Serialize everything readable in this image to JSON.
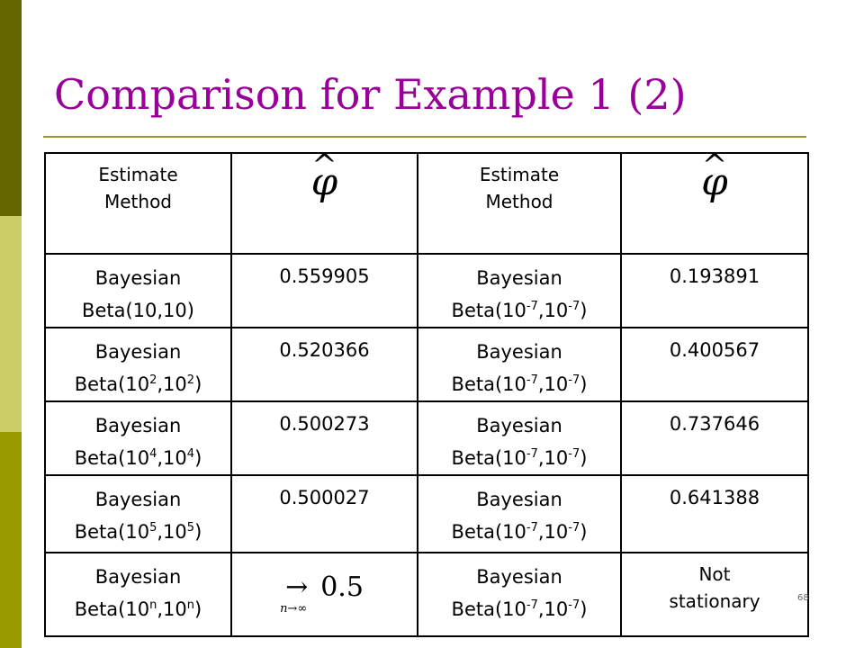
{
  "slide": {
    "title": "Comparison for Example 1 (2)",
    "page_number": "68"
  },
  "table": {
    "header": {
      "col1": [
        "Estimate",
        "Method"
      ],
      "col2_symbol": "φ",
      "col3": [
        "Estimate",
        "Method"
      ],
      "col4_symbol": "φ",
      "hat": "^"
    },
    "rows": [
      {
        "left_method": "Bayesian",
        "left_prior_base": "Beta(10,10)",
        "left_value": "0.559905",
        "right_method": "Bayesian",
        "right_base": "10",
        "right_exp": "-7",
        "right_value": "0.193891"
      },
      {
        "left_method": "Bayesian",
        "left_base": "10",
        "left_exp": "2",
        "left_value": "0.520366",
        "right_method": "Bayesian",
        "right_base": "10",
        "right_exp": "-7",
        "right_value": "0.400567"
      },
      {
        "left_method": "Bayesian",
        "left_base": "10",
        "left_exp": "4",
        "left_value": "0.500273",
        "right_method": "Bayesian",
        "right_base": "10",
        "right_exp": "-7",
        "right_value": "0.737646"
      },
      {
        "left_method": "Bayesian",
        "left_base": "10",
        "left_exp": "5",
        "left_value": "0.500027",
        "right_method": "Bayesian",
        "right_base": "10",
        "right_exp": "-7",
        "right_value": "0.641388"
      },
      {
        "left_method": "Bayesian",
        "left_base": "10",
        "left_exp": "n",
        "limit_arrow": "→",
        "limit_value": "0.5",
        "limit_sub": "n→∞",
        "right_method": "Bayesian",
        "right_base": "10",
        "right_exp": "-7",
        "right_value": [
          "Not",
          "stationary"
        ]
      }
    ]
  },
  "colors": {
    "title": "#990099",
    "bar_dark": "#666600",
    "bar_light": "#cccc66",
    "bar_mid": "#999900",
    "rule": "#999933"
  }
}
